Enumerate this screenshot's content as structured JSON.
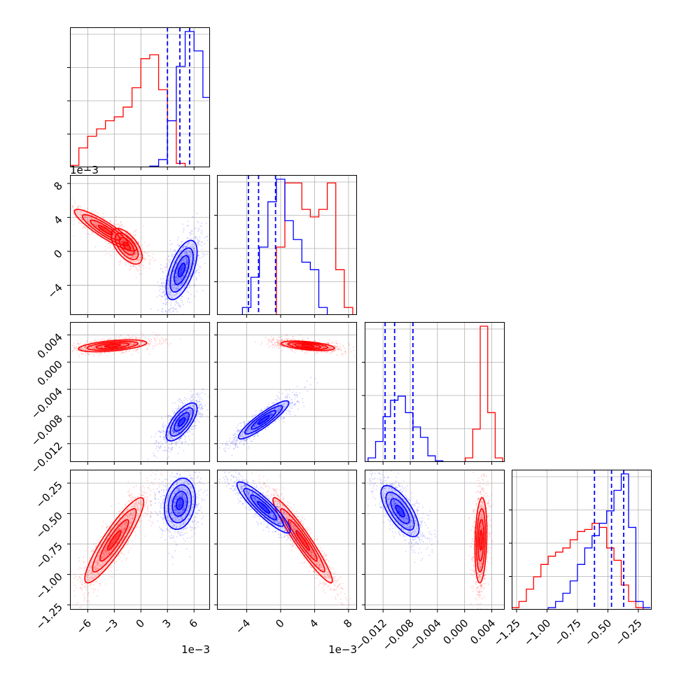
{
  "chart_data": {
    "type": "corner",
    "title": "",
    "grid": true,
    "colors": {
      "red": "#ff0000",
      "blue": "#0000ff"
    },
    "series": [
      {
        "color": "#ff0000",
        "hist_x": ""
      },
      {
        "color": "#0000ff",
        "hist_x": ""
      }
    ],
    "params": [
      {
        "range": [
          -8,
          7.8
        ],
        "ticks": [
          -6,
          -3,
          0,
          3,
          6
        ],
        "tick_labels": [
          "−6",
          "−3",
          "0",
          "3",
          "6"
        ],
        "multiplier": "1e−3"
      },
      {
        "range": [
          -7.5,
          9.0
        ],
        "ticks": [
          -4,
          0,
          4,
          8
        ],
        "tick_labels": [
          "−4",
          "0",
          "4",
          "8"
        ],
        "multiplier": "1e−3"
      },
      {
        "range": [
          -0.0147,
          0.0059
        ],
        "ticks": [
          -0.012,
          -0.008,
          -0.004,
          0.0,
          0.004
        ],
        "tick_labels": [
          "−0.012",
          "−0.008",
          "−0.004",
          "0.000",
          "0.004"
        ],
        "multiplier": ""
      },
      {
        "range": [
          -1.29,
          -0.14
        ],
        "ticks": [
          -1.25,
          -1.0,
          -0.75,
          -0.5,
          -0.25
        ],
        "tick_labels": [
          "−1.25",
          "−1.00",
          "−0.75",
          "−0.50",
          "−0.25"
        ],
        "multiplier": ""
      }
    ],
    "histograms": [
      {
        "param": 0,
        "edges": [
          -8.0,
          -7.0,
          -6.0,
          -5.0,
          -4.0,
          -3.0,
          -2.0,
          -1.0,
          0.0,
          1.0,
          2.0,
          3.0,
          4.0,
          5.0,
          6.0,
          7.0,
          8.0
        ],
        "red": [
          5,
          50,
          80,
          99,
          120,
          130,
          155,
          205,
          280,
          290,
          200,
          120,
          10,
          0,
          0,
          0,
          0
        ],
        "blue": [
          0,
          0,
          0,
          0,
          0,
          0,
          0,
          0,
          0,
          3,
          20,
          120,
          260,
          350,
          300,
          180,
          10
        ],
        "quantile_lines": [
          3.0,
          4.4,
          5.5
        ],
        "ymax": 350
      },
      {
        "param": 1,
        "edges": [
          -7.5,
          -6.5,
          -5.5,
          -4.5,
          -3.5,
          -2.5,
          -1.5,
          -0.5,
          0.5,
          1.5,
          2.5,
          3.5,
          4.5,
          5.5,
          6.5,
          7.5,
          8.5
        ],
        "red": [
          0,
          0,
          0,
          0,
          0,
          0,
          0,
          180,
          350,
          350,
          280,
          260,
          280,
          350,
          120,
          20,
          0
        ],
        "blue": [
          0,
          0,
          0,
          20,
          100,
          180,
          300,
          360,
          250,
          200,
          140,
          120,
          20,
          0,
          0,
          0,
          0
        ],
        "quantile_lines": [
          -3.8,
          -2.6,
          -0.6
        ],
        "ymax": 360
      },
      {
        "param": 2,
        "edges": [
          -0.0142,
          -0.0131,
          -0.012,
          -0.0109,
          -0.0098,
          -0.0087,
          -0.0076,
          -0.0065,
          -0.0054,
          -0.0043,
          -0.0032,
          -0.0021,
          -0.001,
          0.0001,
          0.0012,
          0.0023,
          0.0034,
          0.0045,
          0.0056
        ],
        "red": [
          0,
          0,
          0,
          0,
          0,
          0,
          0,
          0,
          0,
          0,
          0,
          0,
          0,
          10,
          80,
          330,
          120,
          10,
          0
        ],
        "blue": [
          10,
          50,
          110,
          150,
          160,
          120,
          85,
          60,
          15,
          3,
          0,
          0,
          0,
          0,
          0,
          0,
          0,
          0,
          0
        ],
        "quantile_lines": [
          -0.0117,
          -0.0103,
          -0.0076
        ],
        "ymax": 330
      },
      {
        "param": 3,
        "edges": [
          -1.29,
          -1.23,
          -1.17,
          -1.11,
          -1.05,
          -0.99,
          -0.93,
          -0.87,
          -0.81,
          -0.75,
          -0.69,
          -0.63,
          -0.57,
          -0.51,
          -0.45,
          -0.39,
          -0.33,
          -0.27,
          -0.21,
          -0.15
        ],
        "red": [
          5,
          20,
          50,
          80,
          110,
          130,
          140,
          150,
          170,
          190,
          195,
          210,
          200,
          150,
          120,
          60,
          20,
          5,
          0
        ],
        "blue": [
          0,
          0,
          0,
          0,
          0,
          5,
          20,
          40,
          70,
          110,
          150,
          180,
          210,
          240,
          290,
          330,
          200,
          20,
          5
        ],
        "quantile_lines": [
          -0.61,
          -0.47,
          -0.37
        ],
        "ymax": 330
      }
    ],
    "pairs": [
      {
        "x": 0,
        "y": 1,
        "red": [
          {
            "cx": -4.0,
            "cy": 2.5,
            "sx": 2.0,
            "sy": 1.4,
            "rho": -0.9,
            "n": 700
          },
          {
            "cx": -1.6,
            "cy": 0.6,
            "sx": 1.0,
            "sy": 1.2,
            "rho": -0.6,
            "n": 500
          }
        ],
        "blue": [
          {
            "cx": 4.6,
            "cy": -2.2,
            "sx": 1.0,
            "sy": 2.0,
            "rho": 0.6,
            "n": 900
          }
        ]
      },
      {
        "x": 0,
        "y": 2,
        "red": [
          {
            "cx": -3.2,
            "cy": 0.0024,
            "sx": 2.2,
            "sy": 0.0005,
            "rho": 0.5,
            "n": 900
          }
        ],
        "blue": [
          {
            "cx": 4.6,
            "cy": -0.0088,
            "sx": 1.0,
            "sy": 0.0016,
            "rho": 0.7,
            "n": 900
          }
        ]
      },
      {
        "x": 0,
        "y": 3,
        "red": [
          {
            "cx": -3.0,
            "cy": -0.72,
            "sx": 1.9,
            "sy": 0.2,
            "rho": 0.9,
            "n": 1000
          }
        ],
        "blue": [
          {
            "cx": 4.4,
            "cy": -0.42,
            "sx": 1.0,
            "sy": 0.12,
            "rho": 0.2,
            "n": 900
          }
        ]
      },
      {
        "x": 1,
        "y": 2,
        "red": [
          {
            "cx": 3.2,
            "cy": 0.0024,
            "sx": 1.8,
            "sy": 0.0004,
            "rho": -0.5,
            "n": 900
          }
        ],
        "blue": [
          {
            "cx": -2.0,
            "cy": -0.0085,
            "sx": 1.7,
            "sy": 0.0016,
            "rho": 0.9,
            "n": 900
          }
        ]
      },
      {
        "x": 1,
        "y": 3,
        "red": [
          {
            "cx": 2.6,
            "cy": -0.72,
            "sx": 2.0,
            "sy": 0.2,
            "rho": -0.95,
            "n": 1000
          }
        ],
        "blue": [
          {
            "cx": -2.0,
            "cy": -0.45,
            "sx": 1.8,
            "sy": 0.12,
            "rho": -0.9,
            "n": 900
          }
        ]
      },
      {
        "x": 2,
        "y": 3,
        "red": [
          {
            "cx": 0.0024,
            "cy": -0.72,
            "sx": 0.0005,
            "sy": 0.2,
            "rho": 0.2,
            "n": 900
          }
        ],
        "blue": [
          {
            "cx": -0.0095,
            "cy": -0.48,
            "sx": 0.0016,
            "sy": 0.12,
            "rho": -0.7,
            "n": 900
          }
        ]
      }
    ]
  }
}
